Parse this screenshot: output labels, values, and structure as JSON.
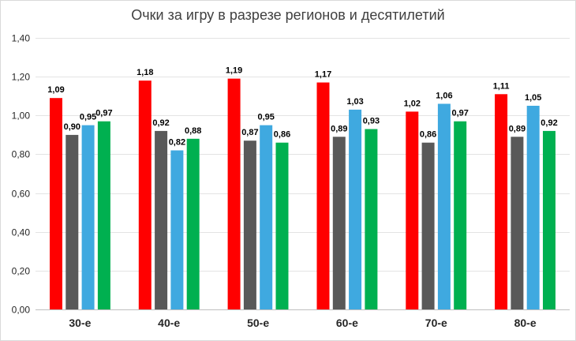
{
  "chart_data": {
    "type": "bar",
    "title": "Очки за игру в разрезе регионов и десятилетий",
    "xlabel": "",
    "ylabel": "",
    "categories": [
      "30-е",
      "40-е",
      "50-е",
      "60-е",
      "70-е",
      "80-е"
    ],
    "series": [
      {
        "color": "#FF0000",
        "values": [
          1.09,
          1.18,
          1.19,
          1.17,
          1.02,
          1.11
        ]
      },
      {
        "color": "#595959",
        "values": [
          0.9,
          0.92,
          0.87,
          0.89,
          0.86,
          0.89
        ]
      },
      {
        "color": "#3FA9E0",
        "values": [
          0.95,
          0.82,
          0.95,
          1.03,
          1.06,
          1.05
        ]
      },
      {
        "color": "#00B050",
        "values": [
          0.97,
          0.88,
          0.86,
          0.93,
          0.97,
          0.92
        ]
      }
    ],
    "ylim": [
      0,
      1.4
    ],
    "yticks": [
      "0,00",
      "0,20",
      "0,40",
      "0,60",
      "0,80",
      "1,00",
      "1,20",
      "1,40"
    ],
    "data_labels": [
      [
        "1,09",
        "1,18",
        "1,19",
        "1,17",
        "1,02",
        "1,11"
      ],
      [
        "0,90",
        "0,92",
        "0,87",
        "0,89",
        "0,86",
        "0,89"
      ],
      [
        "0,95",
        "0,82",
        "0,95",
        "1,03",
        "1,06",
        "1,05"
      ],
      [
        "0,97",
        "0,88",
        "0,86",
        "0,93",
        "0,97",
        "0,92"
      ]
    ],
    "grid": true,
    "legend": "none"
  }
}
